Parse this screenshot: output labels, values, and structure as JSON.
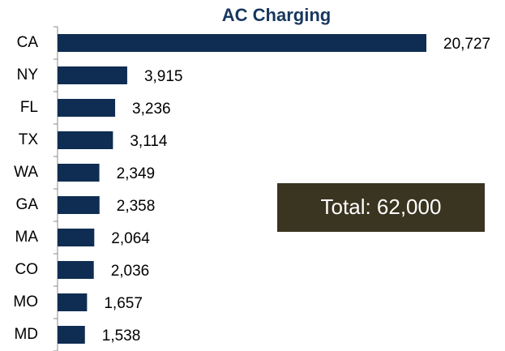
{
  "chart_data": {
    "type": "barh",
    "title": "AC Charging",
    "categories": [
      "CA",
      "NY",
      "FL",
      "TX",
      "WA",
      "GA",
      "MA",
      "CO",
      "MO",
      "MD"
    ],
    "values": [
      20727,
      3915,
      3236,
      3114,
      2349,
      2358,
      2064,
      2036,
      1657,
      1538
    ],
    "value_labels": [
      "20,727",
      "3,915",
      "3,236",
      "3,114",
      "2,349",
      "2,358",
      "2,064",
      "2,036",
      "1,657",
      "1,538"
    ],
    "color": "#0f2d52",
    "annotation": "Total: 62,000"
  }
}
